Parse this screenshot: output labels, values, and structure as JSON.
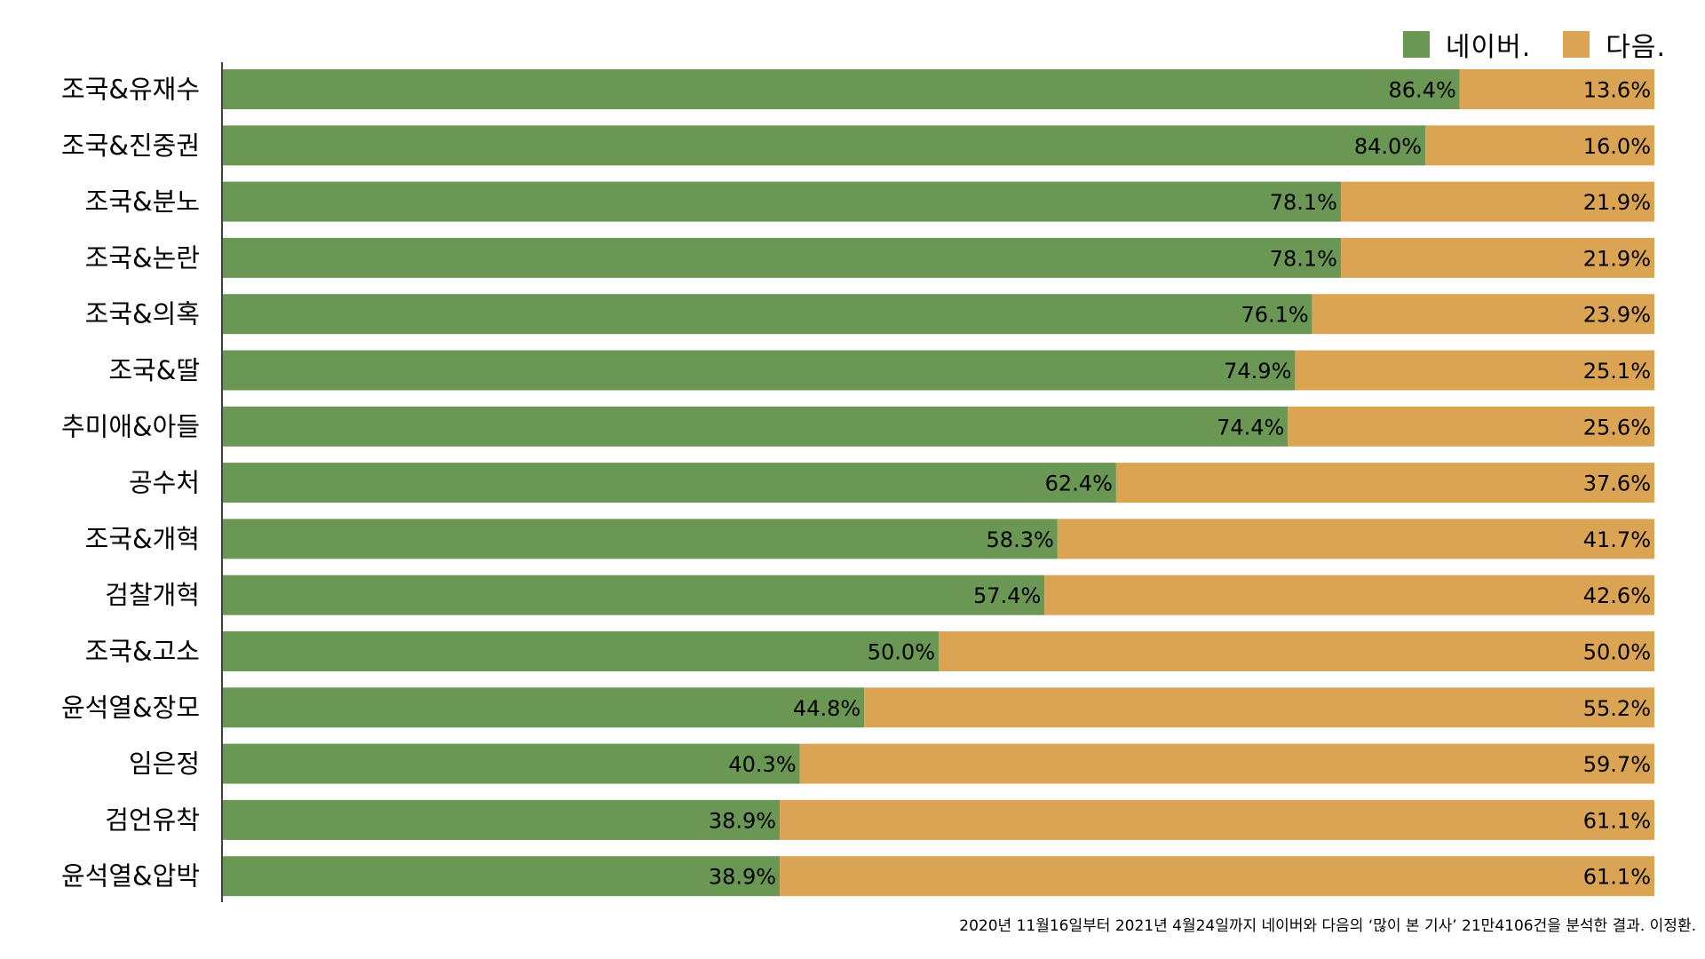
{
  "chart_data": {
    "type": "bar",
    "stacked": true,
    "orientation": "horizontal",
    "percent": true,
    "categories": [
      "조국&유재수",
      "조국&진중권",
      "조국&분노",
      "조국&논란",
      "조국&의혹",
      "조국&딸",
      "추미애&아들",
      "공수처",
      "조국&개혁",
      "검찰개혁",
      "조국&고소",
      "윤석열&장모",
      "임은정",
      "검언유착",
      "윤석열&압박"
    ],
    "series": [
      {
        "name": "네이버.",
        "color": "#6a9753",
        "values": [
          86.4,
          84.0,
          78.1,
          78.1,
          76.1,
          74.9,
          74.4,
          62.4,
          58.3,
          57.4,
          50.0,
          44.8,
          40.3,
          38.9,
          38.9
        ]
      },
      {
        "name": "다음.",
        "color": "#dba453",
        "values": [
          13.6,
          16.0,
          21.9,
          21.9,
          23.9,
          25.1,
          25.6,
          37.6,
          41.7,
          42.6,
          50.0,
          55.2,
          59.7,
          61.1,
          61.1
        ]
      }
    ],
    "value_labels": [
      [
        "86.4%",
        "84.0%",
        "78.1%",
        "78.1%",
        "76.1%",
        "74.9%",
        "74.4%",
        "62.4%",
        "58.3%",
        "57.4%",
        "50.0%",
        "44.8%",
        "40.3%",
        "38.9%",
        "38.9%"
      ],
      [
        "13.6%",
        "16.0%",
        "21.9%",
        "21.9%",
        "23.9%",
        "25.1%",
        "25.6%",
        "37.6%",
        "41.7%",
        "42.6%",
        "50.0%",
        "55.2%",
        "59.7%",
        "61.1%",
        "61.1%"
      ]
    ],
    "xlim": [
      0,
      100
    ],
    "grid": false,
    "legend_position": "top-right"
  },
  "source_note": "2020년 11월16일부터 2021년 4월24일까지 네이버와 다음의 ‘많이 본 기사’ 21만4106건을 분석한 결과. 이정환."
}
